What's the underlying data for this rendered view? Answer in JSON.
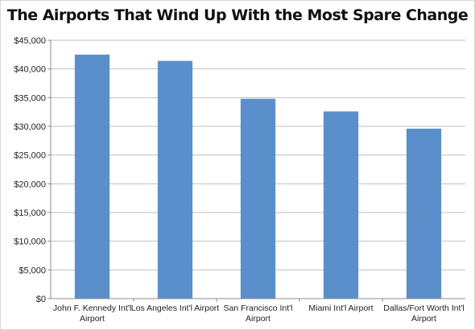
{
  "chart_data": {
    "type": "bar",
    "title": "The Airports That Wind Up With the Most Spare Change",
    "xlabel": "",
    "ylabel": "",
    "categories": [
      [
        "John F. Kennedy Int'l",
        "Airport"
      ],
      [
        "Los Angeles Int'l Airport"
      ],
      [
        "San Francisco Int'l",
        "Airport"
      ],
      [
        "Miami Int'l Airport"
      ],
      [
        "Dallas/Fort Worth Int'l",
        "Airport"
      ]
    ],
    "values": [
      42500,
      41400,
      34800,
      32600,
      29600
    ],
    "ylim": [
      0,
      45000
    ],
    "yticks": [
      0,
      5000,
      10000,
      15000,
      20000,
      25000,
      30000,
      35000,
      40000,
      45000
    ],
    "ytick_labels": [
      "$0",
      "$5,000",
      "$10,000",
      "$15,000",
      "$20,000",
      "$25,000",
      "$30,000",
      "$35,000",
      "$40,000",
      "$45,000"
    ],
    "grid": true,
    "legend": "none",
    "bar_color": "#5b8fcb"
  }
}
